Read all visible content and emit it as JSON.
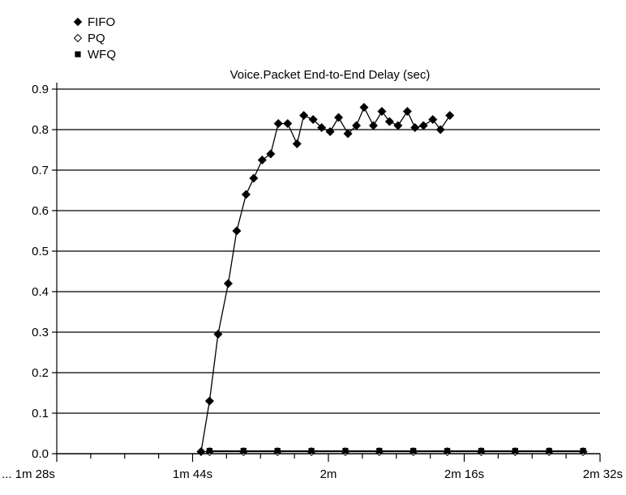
{
  "chart_data": {
    "type": "line",
    "title": "Voice.Packet End-to-End Delay (sec)",
    "xlabel": "",
    "ylabel": "",
    "x_tick_labels": [
      "... 1m 28s",
      "1m 44s",
      "2m",
      "2m 16s",
      "2m 32s"
    ],
    "x_tick_seconds": [
      88,
      104,
      120,
      136,
      152
    ],
    "xlim_seconds": [
      88,
      152
    ],
    "ylim": [
      0,
      0.9
    ],
    "y_ticks": [
      "0.0",
      "0.1",
      "0.2",
      "0.3",
      "0.4",
      "0.5",
      "0.6",
      "0.7",
      "0.8",
      "0.9"
    ],
    "grid": true,
    "legend_position": "top-left",
    "series": [
      {
        "name": "FIFO",
        "marker": "diamond-filled",
        "color": "#000000",
        "points": [
          [
            105.0,
            0.005
          ],
          [
            106.0,
            0.13
          ],
          [
            107.0,
            0.295
          ],
          [
            108.2,
            0.42
          ],
          [
            109.2,
            0.55
          ],
          [
            110.3,
            0.64
          ],
          [
            111.2,
            0.68
          ],
          [
            112.2,
            0.725
          ],
          [
            113.2,
            0.74
          ],
          [
            114.1,
            0.815
          ],
          [
            115.2,
            0.815
          ],
          [
            116.3,
            0.765
          ],
          [
            117.1,
            0.835
          ],
          [
            118.2,
            0.825
          ],
          [
            119.2,
            0.805
          ],
          [
            120.2,
            0.795
          ],
          [
            121.2,
            0.83
          ],
          [
            122.3,
            0.79
          ],
          [
            123.3,
            0.81
          ],
          [
            124.2,
            0.855
          ],
          [
            125.3,
            0.81
          ],
          [
            126.3,
            0.845
          ],
          [
            127.2,
            0.82
          ],
          [
            128.2,
            0.81
          ],
          [
            129.3,
            0.845
          ],
          [
            130.2,
            0.805
          ],
          [
            131.2,
            0.81
          ],
          [
            132.3,
            0.825
          ],
          [
            133.2,
            0.8
          ],
          [
            134.3,
            0.835
          ]
        ]
      },
      {
        "name": "PQ",
        "marker": "diamond-open",
        "color": "#000000",
        "points": [
          [
            106.0,
            0.005
          ],
          [
            110.0,
            0.005
          ],
          [
            114.0,
            0.005
          ],
          [
            118.0,
            0.005
          ],
          [
            122.0,
            0.005
          ],
          [
            126.0,
            0.005
          ],
          [
            130.0,
            0.005
          ],
          [
            134.0,
            0.005
          ],
          [
            138.0,
            0.005
          ],
          [
            142.0,
            0.005
          ],
          [
            146.0,
            0.005
          ],
          [
            150.0,
            0.005
          ]
        ]
      },
      {
        "name": "WFQ",
        "marker": "square-filled",
        "color": "#000000",
        "points": [
          [
            106.0,
            0.007
          ],
          [
            110.0,
            0.007
          ],
          [
            114.0,
            0.007
          ],
          [
            118.0,
            0.007
          ],
          [
            122.0,
            0.007
          ],
          [
            126.0,
            0.007
          ],
          [
            130.0,
            0.007
          ],
          [
            134.0,
            0.007
          ],
          [
            138.0,
            0.007
          ],
          [
            142.0,
            0.007
          ],
          [
            146.0,
            0.007
          ],
          [
            150.0,
            0.007
          ]
        ]
      }
    ]
  }
}
